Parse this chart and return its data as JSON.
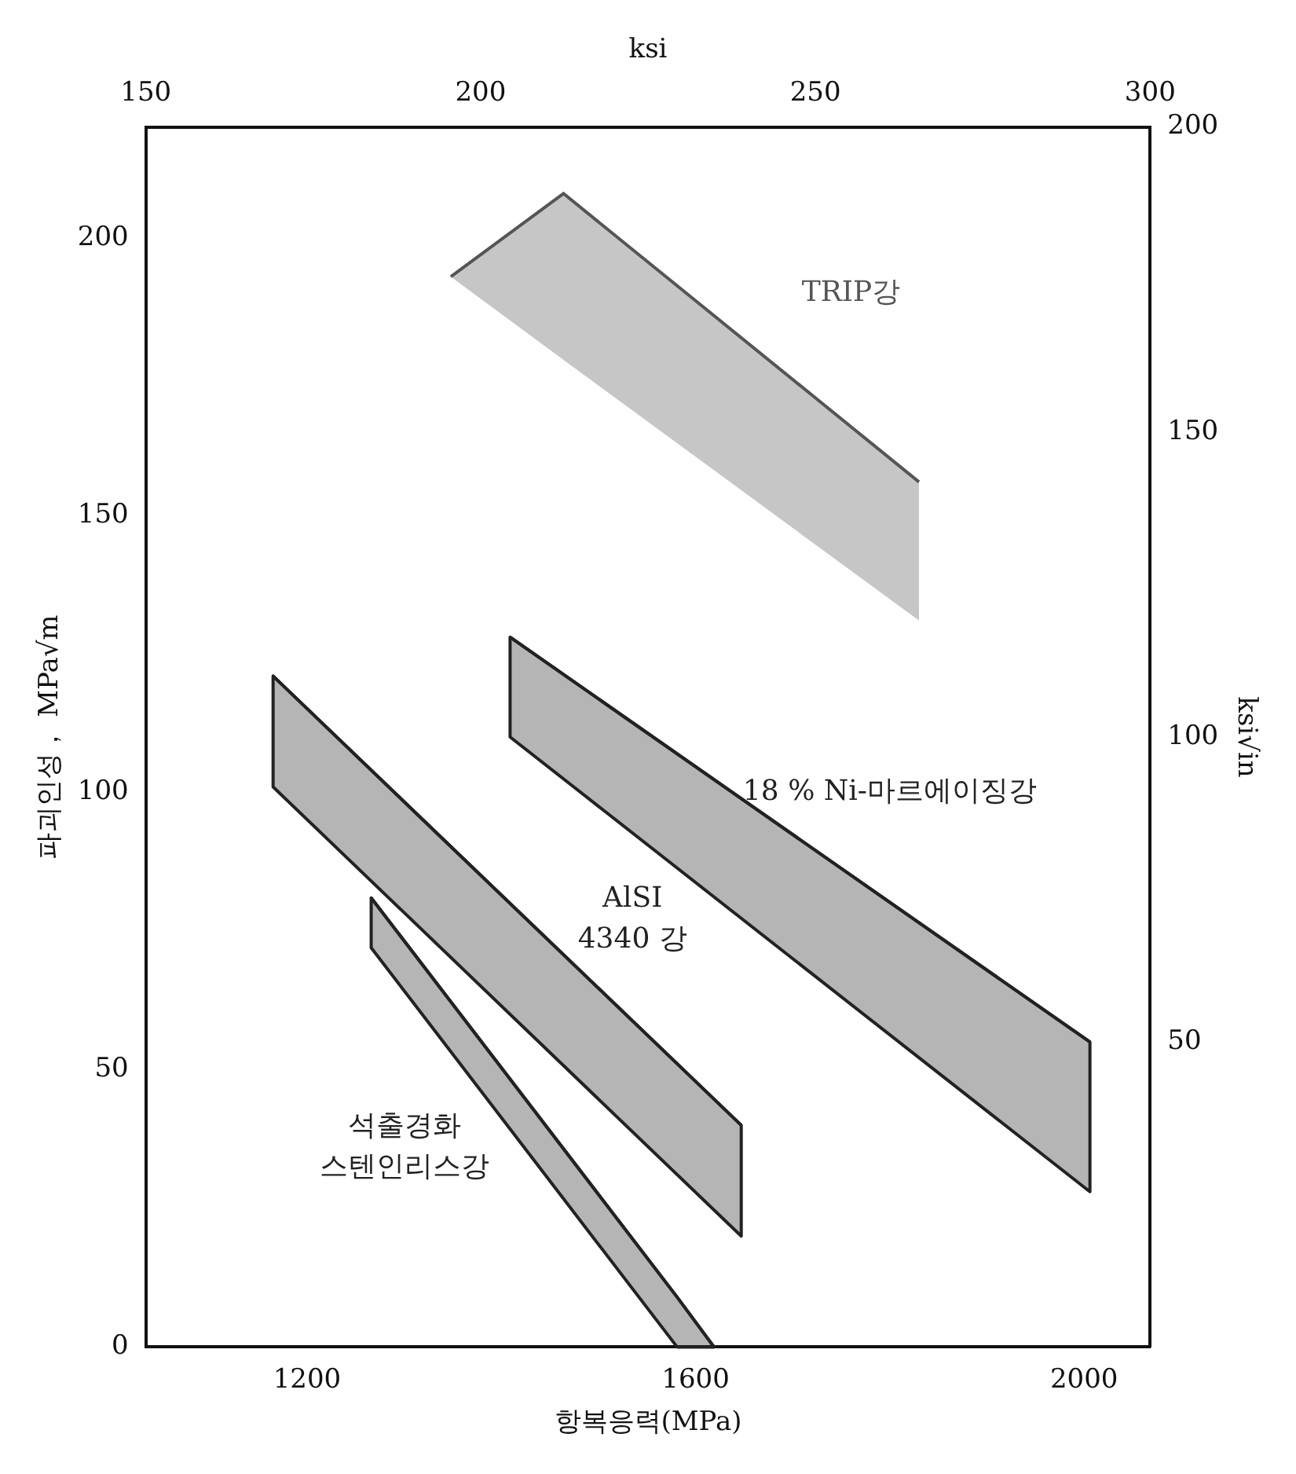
{
  "chart_data": {
    "type": "line",
    "xlabel": "항복응력(MPa)",
    "ylabel": "파괴인성， MPa√m",
    "x2label": "ksi",
    "y2label": "ksi√in",
    "xlim": [
      1034,
      2068
    ],
    "xticks": [
      1200,
      1600,
      2000
    ],
    "x2lim": [
      150,
      300
    ],
    "x2ticks": [
      150,
      200,
      250,
      300
    ],
    "ylim": [
      0,
      220
    ],
    "yticks": [
      0,
      50,
      100,
      150,
      200
    ],
    "y2lim": [
      0,
      200
    ],
    "y2ticks": [
      50,
      100,
      150,
      200
    ],
    "grid": false,
    "legend": false,
    "series": [
      {
        "name": "TRIP강",
        "color": "#555555",
        "x": [
          1348,
          1464,
          1830
        ],
        "values": [
          193,
          208,
          156
        ],
        "upper": [
          193,
          208,
          156
        ],
        "lower": [
          193,
          178,
          131
        ]
      },
      {
        "name": "18 % Ni-마르에이징강",
        "color": "#222222",
        "x": [
          1409,
          2006
        ],
        "values": [
          128,
          55
        ],
        "upper": [
          128,
          55
        ],
        "lower": [
          110,
          28
        ]
      },
      {
        "name": "AlSI\n4340 강",
        "color": "#222222",
        "x": [
          1165,
          1647
        ],
        "values": [
          121,
          40
        ],
        "upper": [
          121,
          40
        ],
        "lower": [
          101,
          20
        ]
      },
      {
        "name": "석출경화\n스텐인리스강",
        "color": "#222222",
        "x": [
          1266,
          1581,
          1619
        ],
        "values": [
          81,
          9,
          0
        ],
        "upper": [
          81,
          9,
          0
        ],
        "lower": [
          72,
          0,
          0
        ]
      }
    ]
  }
}
